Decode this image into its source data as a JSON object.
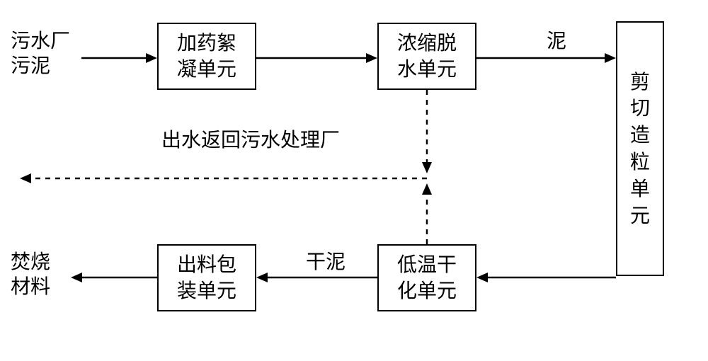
{
  "diagram": {
    "type": "flowchart",
    "background_color": "#ffffff",
    "border_color": "#000000",
    "text_color": "#000000",
    "nodes": {
      "input": {
        "label": "污水厂\n污泥"
      },
      "n1": {
        "label": "加药絮\n凝单元"
      },
      "n2": {
        "label": "浓缩脱\n水单元"
      },
      "n3": {
        "label": "剪切造粒单元"
      },
      "n4": {
        "label": "低温干\n化单元"
      },
      "n5": {
        "label": "出料包\n装单元"
      },
      "output": {
        "label": "焚烧\n材料"
      }
    },
    "edge_labels": {
      "mud": "泥",
      "return": "出水返回污水处理厂",
      "dry_mud": "干泥"
    }
  }
}
